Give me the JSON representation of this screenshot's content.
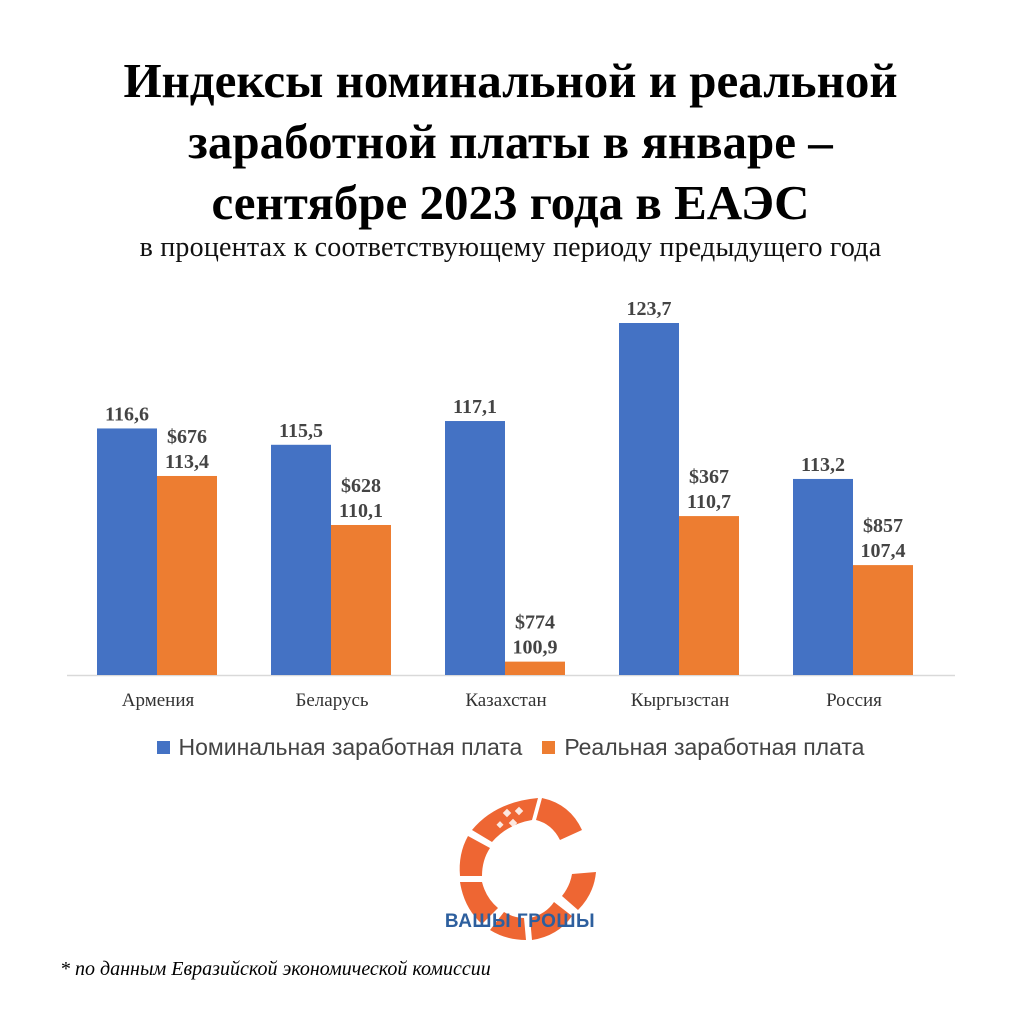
{
  "title_lines": [
    "Индексы номинальной и реальной",
    "заработной платы в январе –",
    "сентябре 2023 года в ЕАЭС"
  ],
  "subtitle": "в процентах к соответствующему периоду предыдущего года",
  "chart_data": {
    "type": "bar",
    "categories": [
      "Армения",
      "Беларусь",
      "Казахстан",
      "Кыргызстан",
      "Россия"
    ],
    "series": [
      {
        "name": "Номинальная заработная плата",
        "color": "#4472c4",
        "values": [
          116.6,
          115.5,
          117.1,
          123.7,
          113.2
        ],
        "labels": [
          "116,6",
          "115,5",
          "117,1",
          "123,7",
          "113,2"
        ]
      },
      {
        "name": "Реальная заработная плата",
        "color": "#ed7d31",
        "values": [
          113.4,
          110.1,
          100.9,
          110.7,
          107.4
        ],
        "labels": [
          "113,4",
          "110,1",
          "100,9",
          "110,7",
          "107,4"
        ],
        "annotations": [
          "$676",
          "$628",
          "$774",
          "$367",
          "$857"
        ]
      }
    ],
    "ylim": [
      100,
      125
    ],
    "grid": false,
    "legend": "bottom"
  },
  "logo": {
    "text": "ВАШЫ ГРОШЫ",
    "icon": "sun-burst-logo-icon"
  },
  "footnote": "* по данным Евразийской экономической комиссии",
  "colors": {
    "nominal": "#4472c4",
    "real": "#ed7d31",
    "logo_text": "#2d5f9e"
  }
}
